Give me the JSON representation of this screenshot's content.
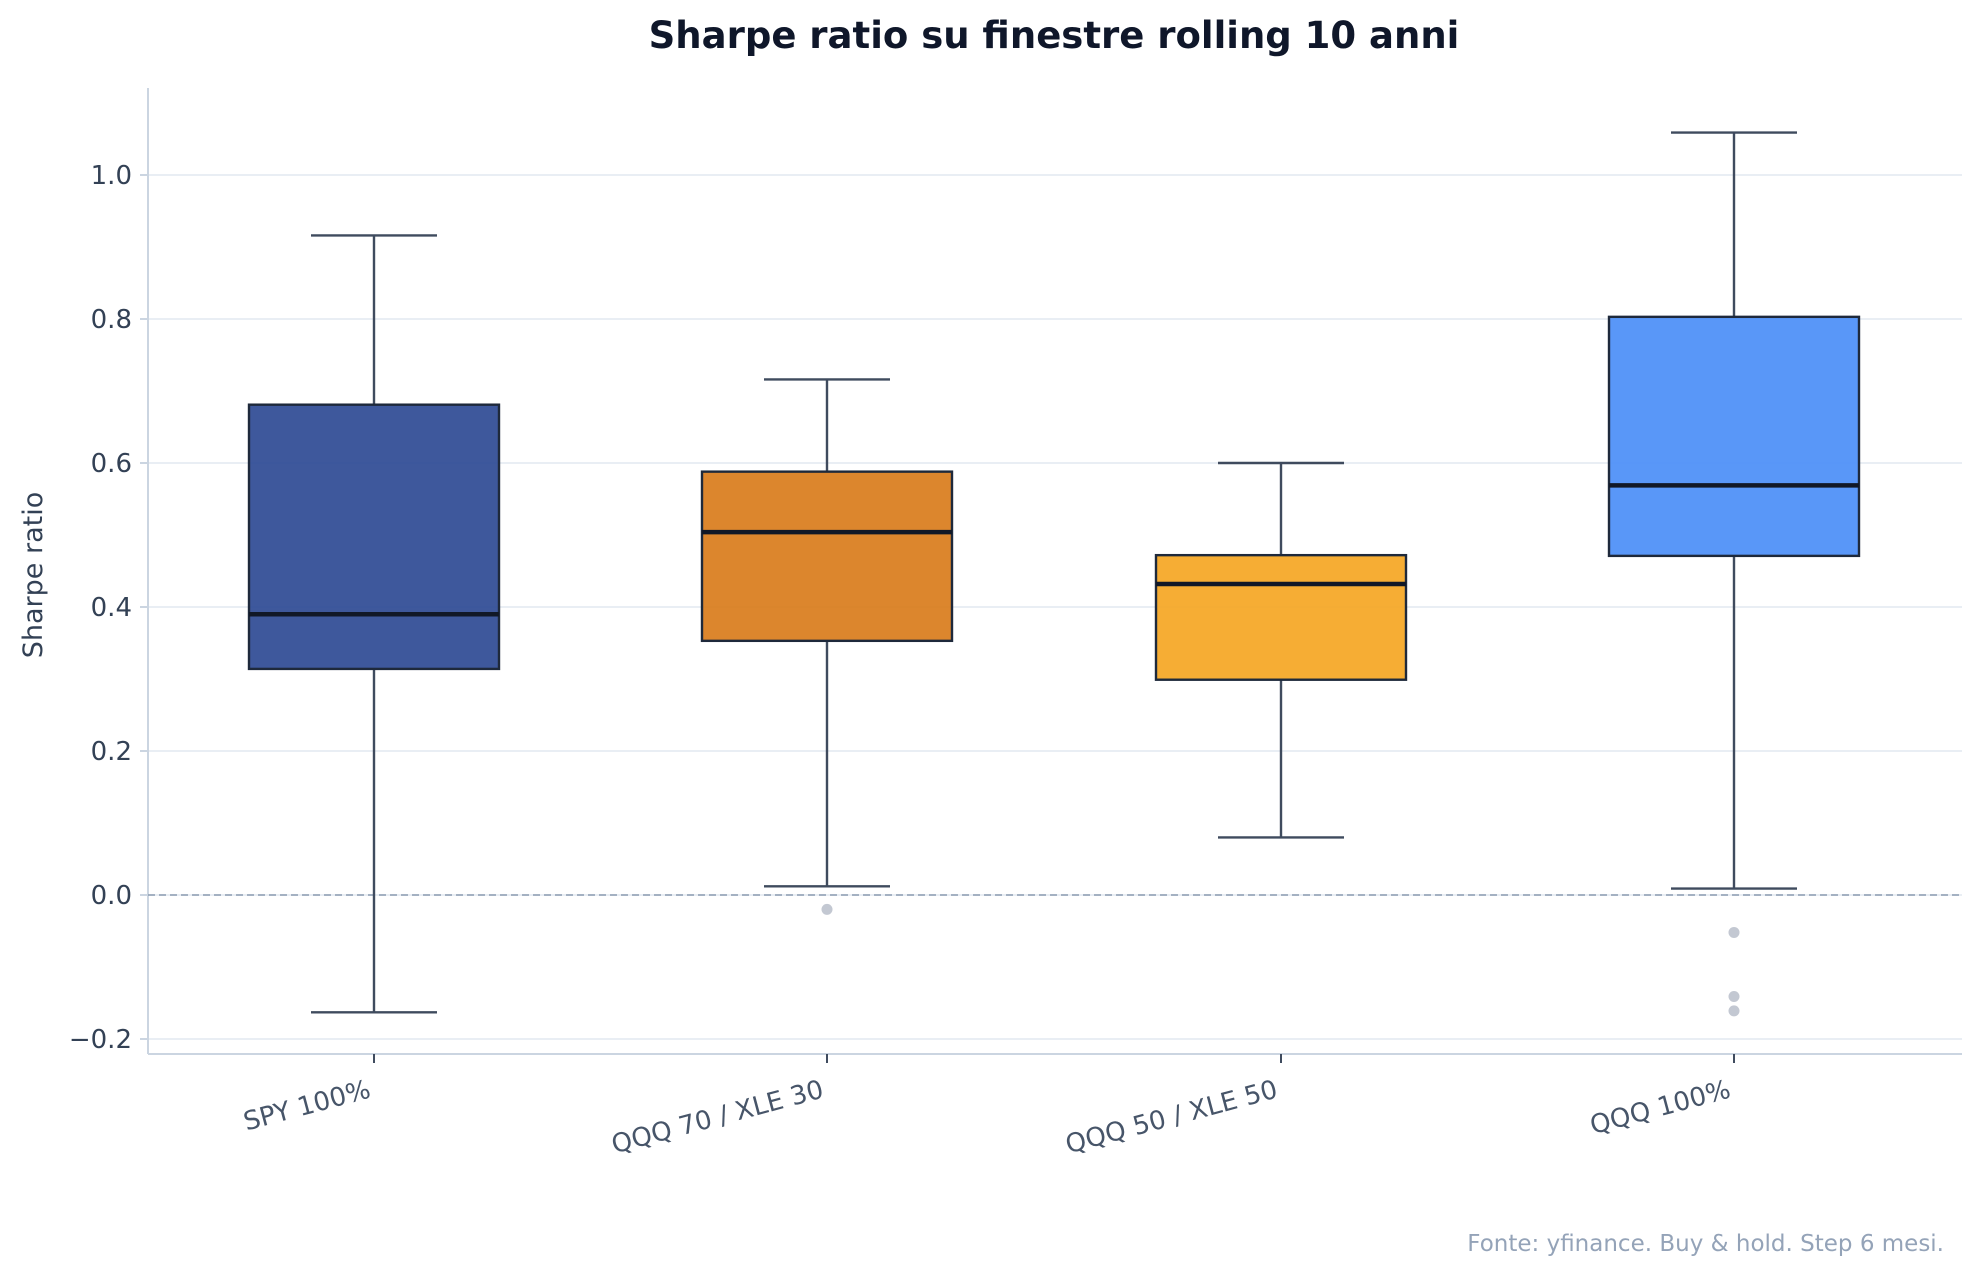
{
  "chart_data": {
    "type": "box",
    "title": "Sharpe ratio su finestre rolling 10 anni",
    "xlabel": "",
    "ylabel": "Sharpe ratio",
    "ylim": [
      -0.225,
      1.12
    ],
    "yticks": [
      -0.2,
      0.0,
      0.2,
      0.4,
      0.6,
      0.8,
      1.0
    ],
    "ytick_labels": [
      "−0.2",
      "0.0",
      "0.2",
      "0.4",
      "0.6",
      "0.8",
      "1.0"
    ],
    "grid": "horizontal",
    "reference_line": {
      "y": 0.0,
      "style": "dashed"
    },
    "categories": [
      "SPY 100%",
      "QQQ 70 / XLE 30",
      "QQQ 50 / XLE 50",
      "QQQ 100%"
    ],
    "boxes": [
      {
        "category": "SPY 100%",
        "whisker_low": -0.163,
        "q1": 0.314,
        "median": 0.39,
        "q3": 0.681,
        "whisker_high": 0.916,
        "outliers": [],
        "color": "#2e4a94"
      },
      {
        "category": "QQQ 70 / XLE 30",
        "whisker_low": 0.012,
        "q1": 0.353,
        "median": 0.504,
        "q3": 0.588,
        "whisker_high": 0.716,
        "outliers": [
          -0.02
        ],
        "color": "#d97c1b"
      },
      {
        "category": "QQQ 50 / XLE 50",
        "whisker_low": 0.08,
        "q1": 0.299,
        "median": 0.432,
        "q3": 0.472,
        "whisker_high": 0.6,
        "outliers": [],
        "color": "#f5a623"
      },
      {
        "category": "QQQ 100%",
        "whisker_low": 0.009,
        "q1": 0.471,
        "median": 0.569,
        "q3": 0.803,
        "whisker_high": 1.059,
        "outliers": [
          -0.052,
          -0.141,
          -0.161
        ],
        "color": "#4b8ef7"
      }
    ]
  },
  "source_note": "Fonte: yfinance. Buy & hold. Step 6 mesi.",
  "colors": {
    "axis": "#cbd5e1",
    "grid": "#e2e8f0",
    "whisker": "#3f4b5e",
    "median": "#111827",
    "box_edge": "#1e293b",
    "outlier": "#c3c8d2",
    "reference_line": "#8a9bb0"
  }
}
